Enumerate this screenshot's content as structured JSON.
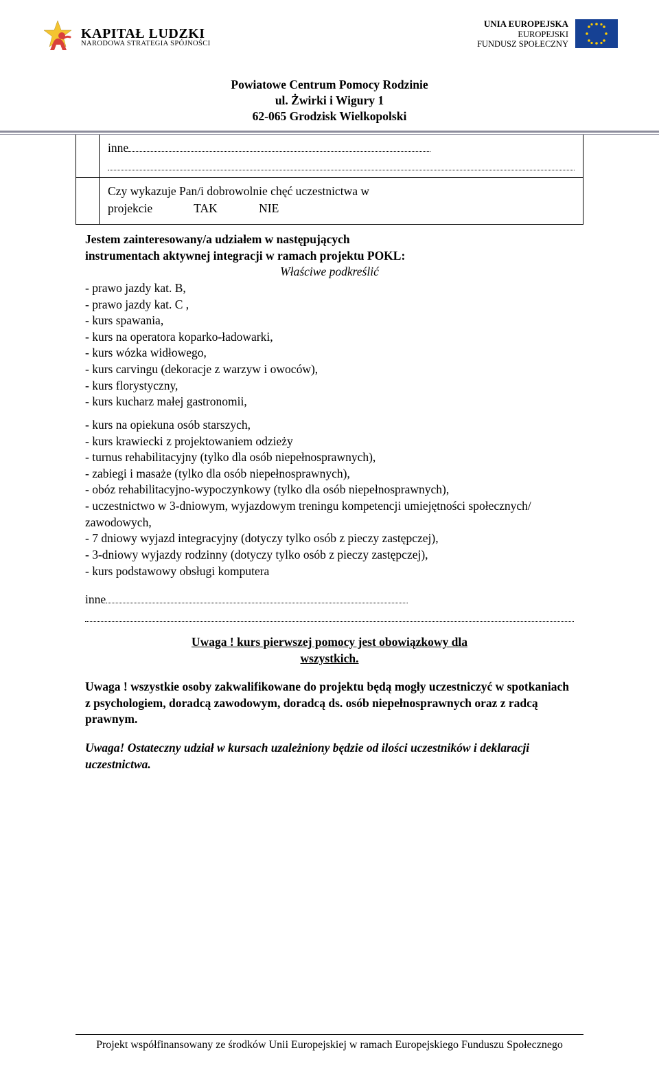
{
  "header": {
    "kapital_title": "KAPITAŁ LUDZKI",
    "kapital_sub": "NARODOWA STRATEGIA SPÓJNOŚCI",
    "eu_l1": "UNIA EUROPEJSKA",
    "eu_l2": "EUROPEJSKI",
    "eu_l3": "FUNDUSZ SPOŁECZNY",
    "address_l1": "Powiatowe Centrum Pomocy Rodzinie",
    "address_l2": "ul. Żwirki i Wigury 1",
    "address_l3": "62-065 Grodzisk Wielkopolski"
  },
  "q1": {
    "prefix": "inne",
    "line1": "Czy wykazuje Pan/i  dobrowolnie chęć uczestnictwa w",
    "line2_a": "projekcie",
    "line2_b": "TAK",
    "line2_c": "NIE"
  },
  "body": {
    "intro_l1": "Jestem zainteresowany/a udziałem w następujących",
    "intro_l2": "instrumentach aktywnej integracji w ramach projektu POKL:",
    "podkreslic": "Właściwe podkreślić",
    "items": [
      "- prawo jazdy kat. B,",
      "- prawo jazdy kat. C ,",
      "- kurs spawania,",
      "- kurs na operatora koparko-ładowarki,",
      "- kurs wózka widłowego,",
      "- kurs carvingu (dekoracje z warzyw i owoców),",
      "- kurs florystyczny,",
      "- kurs kucharz małej gastronomii,",
      "- kurs na opiekuna osób starszych,",
      "- kurs krawiecki z projektowaniem odzieży",
      "- turnus rehabilitacyjny (tylko dla osób niepełnosprawnych),",
      "-  zabiegi i masaże (tylko dla osób niepełnosprawnych),",
      "- obóz rehabilitacyjno-wypoczynkowy (tylko dla osób niepełnosprawnych),",
      "- uczestnictwo w 3-dniowym, wyjazdowym treningu kompetencji umiejętności społecznych/ zawodowych,",
      "- 7 dniowy wyjazd integracyjny (dotyczy tylko osób z pieczy zastępczej),",
      "- 3-dniowy wyjazdy rodzinny (dotyczy tylko osób z pieczy zastępczej),",
      "- kurs podstawowy obsługi komputera"
    ],
    "inne": "inne",
    "uwaga1_a": "Uwaga ! kurs pierwszej pomocy jest obowiązkowy dla",
    "uwaga1_b": "wszystkich.",
    "uwaga2": "Uwaga ! wszystkie osoby zakwalifikowane do  projektu będą mogły uczestniczyć w spotkaniach z psychologiem, doradcą zawodowym, doradcą ds. osób niepełnosprawnych oraz z radcą prawnym.",
    "uwaga3": "Uwaga! Ostateczny udział w kursach uzależniony będzie od ilości uczestników i deklaracji uczestnictwa."
  },
  "footer": {
    "text": "Projekt współfinansowany ze środków Unii Europejskiej w ramach Europejskiego Funduszu Społecznego"
  },
  "colors": {
    "star_yellow": "#f4c430",
    "star_red": "#d9403b",
    "eu_blue": "#164194",
    "eu_star": "#ffcc00",
    "hr": "#8c8c9b"
  }
}
